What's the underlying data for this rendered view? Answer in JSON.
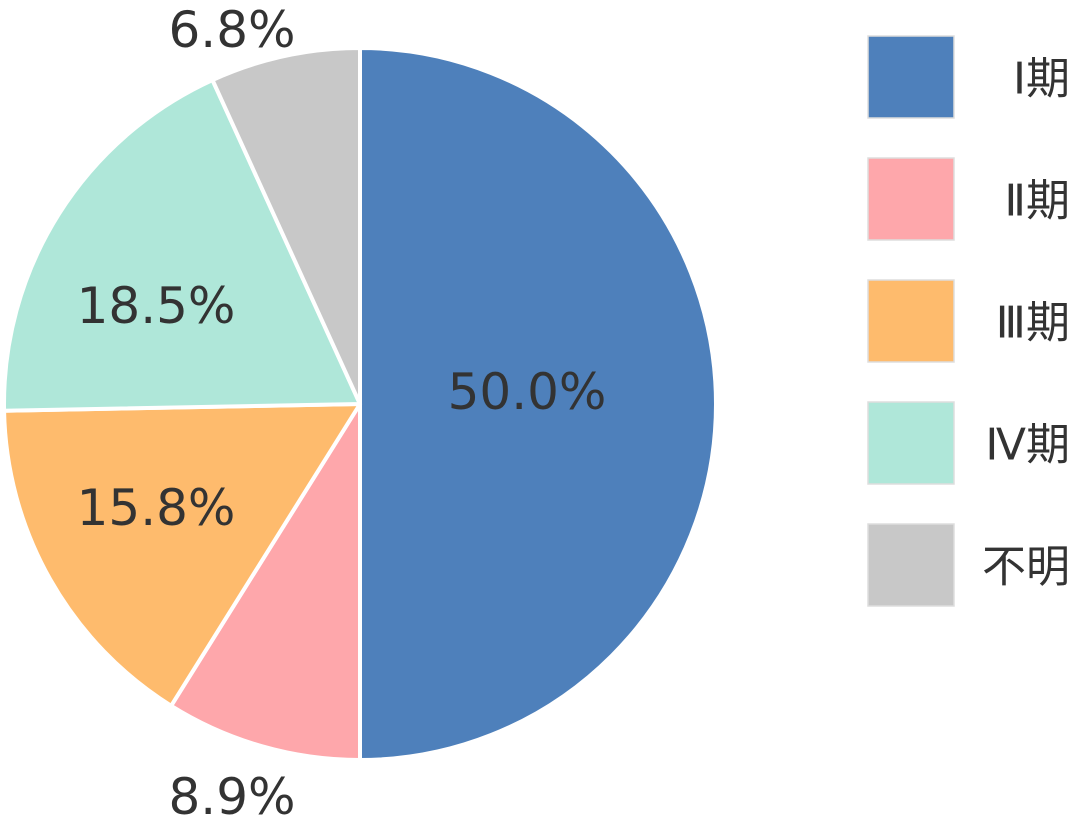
{
  "chart_data": {
    "type": "pie",
    "title": "",
    "legend_position": "right",
    "start_angle_deg": 0,
    "direction": "clockwise",
    "slices": [
      {
        "label": "Ⅰ期",
        "value": 50.0,
        "value_label": "50.0%",
        "color": "#4e80bb",
        "label_color": "#ffffff",
        "label_position": "inside"
      },
      {
        "label": "Ⅱ期",
        "value": 8.9,
        "value_label": "8.9%",
        "color": "#fea7ab",
        "label_color": "#333333",
        "label_position": "outside"
      },
      {
        "label": "Ⅲ期",
        "value": 15.8,
        "value_label": "15.8%",
        "color": "#febb6d",
        "label_color": "#333333",
        "label_position": "inside"
      },
      {
        "label": "Ⅳ期",
        "value": 18.5,
        "value_label": "18.5%",
        "color": "#afe7d9",
        "label_color": "#333333",
        "label_position": "inside"
      },
      {
        "label": "不明",
        "value": 6.8,
        "value_label": "6.8%",
        "color": "#c8c8c8",
        "label_color": "#333333",
        "label_position": "outside"
      }
    ]
  }
}
